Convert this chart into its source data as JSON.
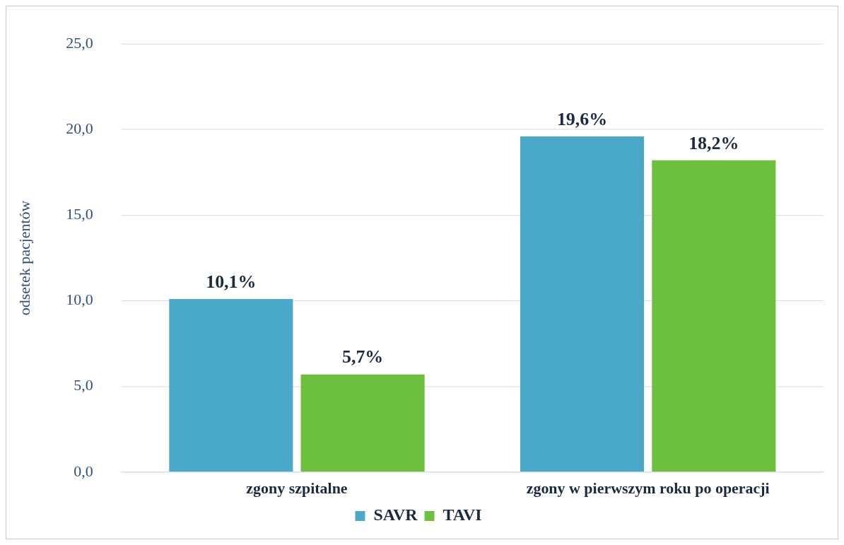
{
  "chart_data": {
    "type": "bar",
    "ylabel": "odsetek pacjentów",
    "categories": [
      "zgony szpitalne",
      "zgony w pierwszym roku po operacji"
    ],
    "series": [
      {
        "name": "SAVR",
        "color": "#4aa9c9",
        "values": [
          10.1,
          19.6
        ],
        "value_labels": [
          "10,1%",
          "19,6%"
        ]
      },
      {
        "name": "TAVI",
        "color": "#6dbf3e",
        "values": [
          5.7,
          18.2
        ],
        "value_labels": [
          "5,7%",
          "18,2%"
        ]
      }
    ],
    "ylim": [
      0,
      25
    ],
    "yticks": [
      {
        "value": 0,
        "label": "0,0"
      },
      {
        "value": 5,
        "label": "5,0"
      },
      {
        "value": 10,
        "label": "10,0"
      },
      {
        "value": 15,
        "label": "15,0"
      },
      {
        "value": 20,
        "label": "20,0"
      },
      {
        "value": 25,
        "label": "25,0"
      }
    ],
    "grid": "y",
    "legend": "bottom"
  }
}
